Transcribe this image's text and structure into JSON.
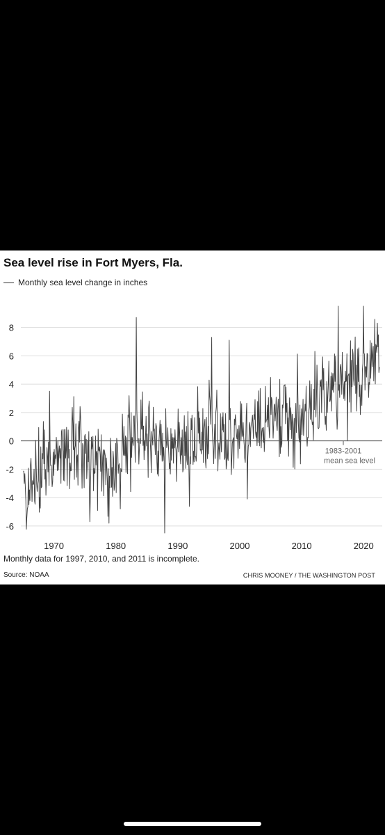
{
  "header": {
    "title": "Sea level rise in Fort Myers, Fla.",
    "legend": "Monthly sea level change in inches"
  },
  "annotation": {
    "line1": "1983-2001",
    "line2": "mean sea level"
  },
  "footer": {
    "note": "Monthly data for 1997, 2010, and 2011 is incomplete.",
    "source": "Source: NOAA",
    "credit": "CHRIS MOONEY / THE WASHINGTON POST"
  },
  "colors": {
    "line": "#444444",
    "baseline": "#555555",
    "grid": "#dddddd",
    "background": "#ffffff",
    "frame": "#000000"
  },
  "chart_data": {
    "type": "line",
    "title": "Sea level rise in Fort Myers, Fla.",
    "xlabel": "",
    "ylabel": "",
    "series": [
      {
        "name": "Monthly sea level change in inches"
      }
    ],
    "xlim": [
      1965,
      2023
    ],
    "ylim": [
      -6.5,
      9.5
    ],
    "x_ticks": [
      1970,
      1980,
      1990,
      2000,
      2010,
      2020
    ],
    "y_ticks": [
      -6,
      -4,
      -2,
      0,
      2,
      4,
      6,
      8
    ],
    "grid": true,
    "anchors": {
      "year": [
        1965,
        1967,
        1970,
        1973,
        1976,
        1979,
        1981,
        1983,
        1986,
        1990,
        1993,
        1996,
        1998,
        2001,
        2003,
        2006,
        2009,
        2012,
        2015,
        2017,
        2019,
        2021,
        2022.5
      ],
      "value": [
        -4.2,
        -2.8,
        -1.2,
        -0.5,
        -1.0,
        -2.5,
        -1.2,
        0.6,
        -0.3,
        -0.3,
        0.2,
        1.2,
        0.3,
        0.5,
        1.2,
        1.8,
        1.2,
        2.3,
        3.5,
        4.3,
        4.5,
        5.0,
        5.8
      ]
    },
    "extremes": [
      {
        "x": 1983.3,
        "y": 8.7
      },
      {
        "x": 1987.9,
        "y": -6.5
      },
      {
        "x": 1995.5,
        "y": 7.3
      },
      {
        "x": 1998.3,
        "y": 7.1
      },
      {
        "x": 2001.2,
        "y": -4.1
      },
      {
        "x": 2015.9,
        "y": 9.6
      },
      {
        "x": 2020.0,
        "y": 9.6
      },
      {
        "x": 2022.2,
        "y": 8.3
      },
      {
        "x": 1975.8,
        "y": -5.7
      },
      {
        "x": 1969.3,
        "y": 3.5
      },
      {
        "x": 2017.4,
        "y": 0.0
      }
    ]
  }
}
